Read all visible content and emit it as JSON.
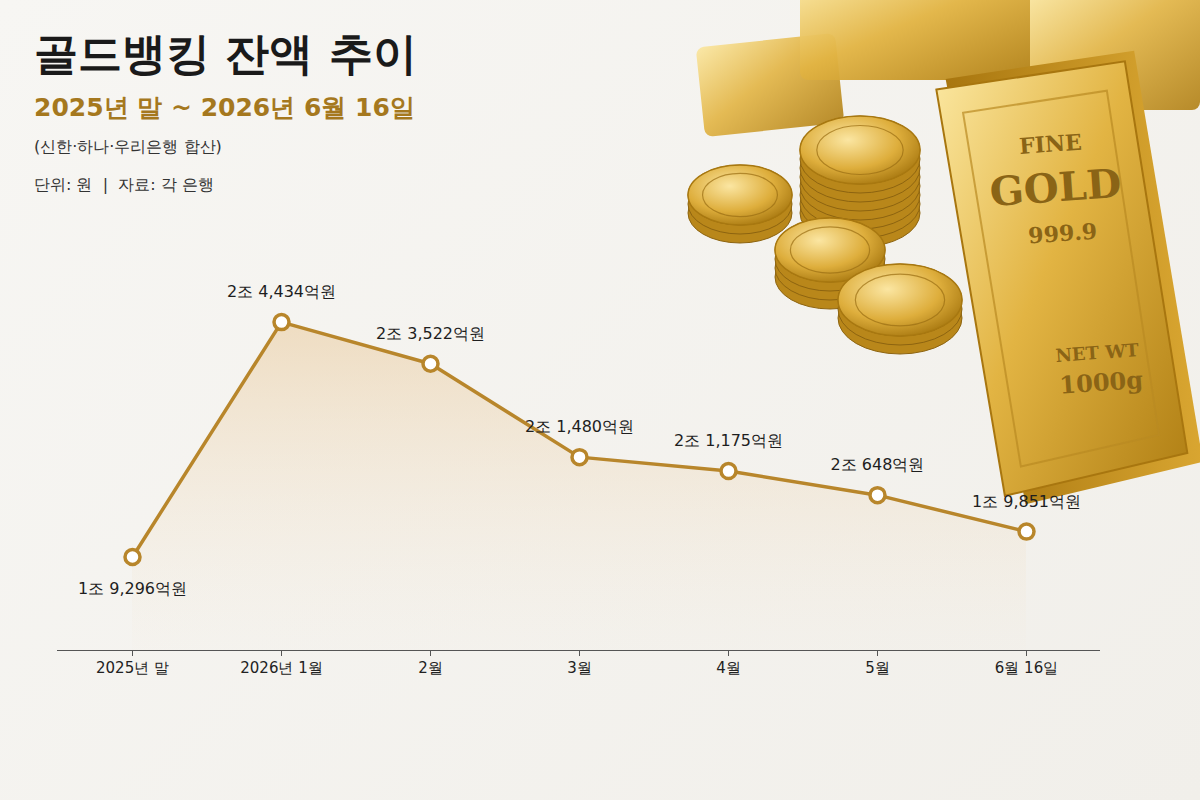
{
  "chart_data": {
    "type": "line",
    "title": "골드뱅킹 잔액 추이",
    "subtitle": "2025년 말 ~ 2026년 6월 16일",
    "annotations": [
      "(신한·하나·우리은행 합산)",
      "단위: 원  |  자료: 각 은행"
    ],
    "categories": [
      "2025년 말",
      "2026년 1월",
      "2월",
      "3월",
      "4월",
      "5월",
      "6월 16일"
    ],
    "values": [
      1929600000000,
      2443400000000,
      2352200000000,
      2148000000000,
      2117500000000,
      2064800000000,
      1985100000000
    ],
    "value_labels": [
      "1조 9,296억원",
      "2조 4,434억원",
      "2조 3,522억원",
      "2조 1,480억원",
      "2조 1,175억원",
      "2조 648억원",
      "1조 9,851억원"
    ],
    "color": "#b8862b",
    "marker": "circle",
    "data_labels": true,
    "tick_labels": "x",
    "grid": false,
    "ylim": [
      1725000000000,
      2600000000000
    ]
  },
  "decoration": {
    "texts": [
      "FINE",
      "GOLD",
      "999.9",
      "NET WT",
      "1000g"
    ]
  }
}
